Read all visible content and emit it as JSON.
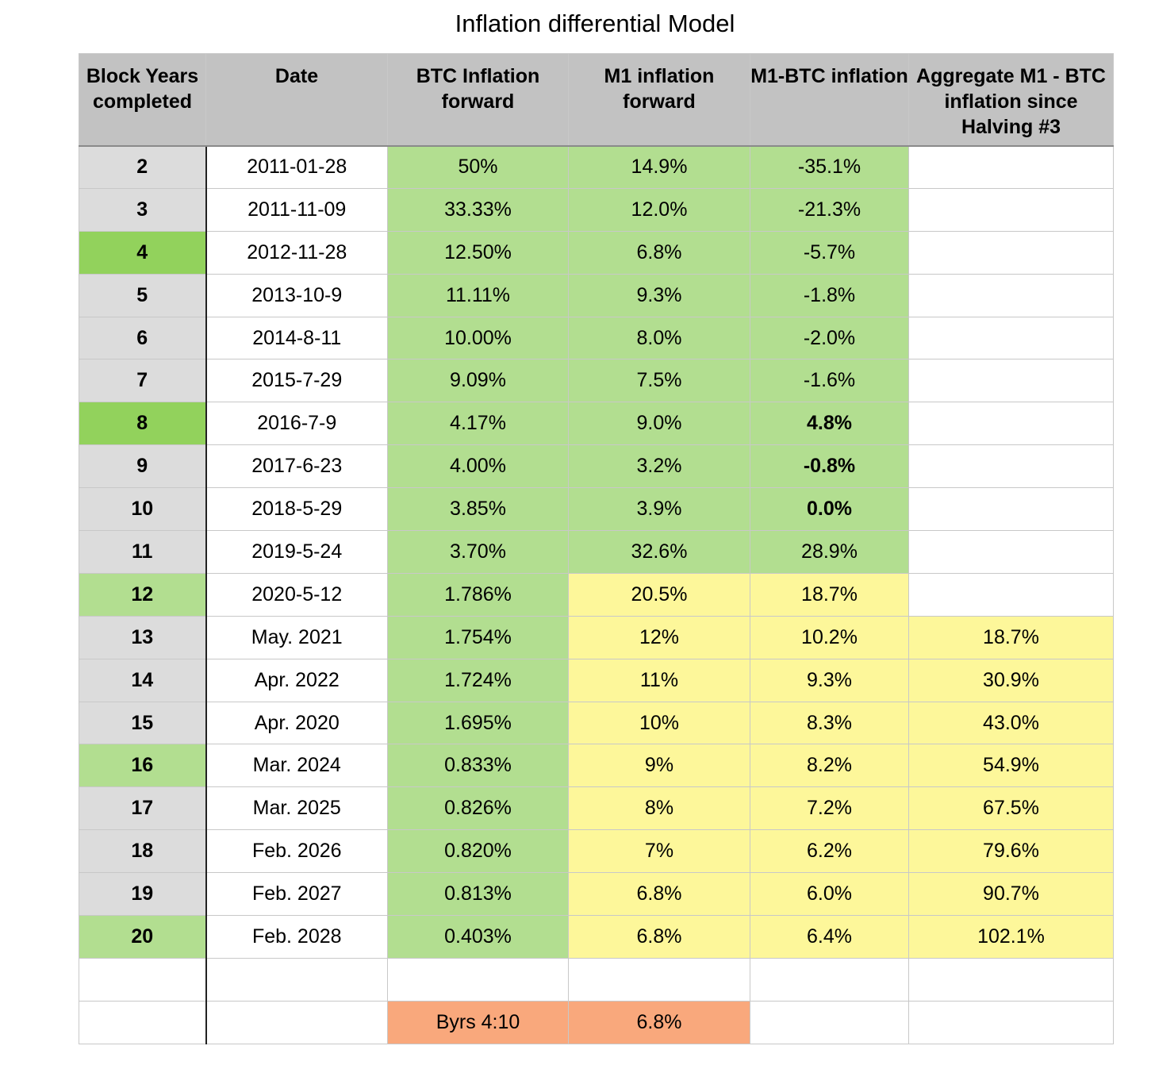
{
  "title": "Inflation differential Model",
  "colors": {
    "header_gray": "#c2c2c2",
    "row_label_gray": "#dcdcdc",
    "halving_green_bright": "#92d25c",
    "green": "#b2de90",
    "yellow": "#fdf79a",
    "salmon": "#f9a87c"
  },
  "headers": {
    "block_years": "Block Years completed",
    "date": "Date",
    "btc_inflation": "BTC Inflation forward",
    "m1_inflation": "M1 inflation forward",
    "m1_btc": "M1-BTC inflation",
    "aggregate": "Aggregate M1 - BTC inflation since Halving #3"
  },
  "rows": [
    {
      "block": "2",
      "date": "2011-01-28",
      "btc": "50%",
      "m1": "14.9%",
      "diff": "-35.1%",
      "agg": ""
    },
    {
      "block": "3",
      "date": "2011-11-09",
      "btc": "33.33%",
      "m1": "12.0%",
      "diff": "-21.3%",
      "agg": ""
    },
    {
      "block": "4",
      "date": "2012-11-28",
      "btc": "12.50%",
      "m1": "6.8%",
      "diff": "-5.7%",
      "agg": ""
    },
    {
      "block": "5",
      "date": "2013-10-9",
      "btc": "11.11%",
      "m1": "9.3%",
      "diff": "-1.8%",
      "agg": ""
    },
    {
      "block": "6",
      "date": "2014-8-11",
      "btc": "10.00%",
      "m1": "8.0%",
      "diff": "-2.0%",
      "agg": ""
    },
    {
      "block": "7",
      "date": "2015-7-29",
      "btc": "9.09%",
      "m1": "7.5%",
      "diff": "-1.6%",
      "agg": ""
    },
    {
      "block": "8",
      "date": "2016-7-9",
      "btc": "4.17%",
      "m1": "9.0%",
      "diff": "4.8%",
      "agg": ""
    },
    {
      "block": "9",
      "date": "2017-6-23",
      "btc": "4.00%",
      "m1": "3.2%",
      "diff": "-0.8%",
      "agg": ""
    },
    {
      "block": "10",
      "date": "2018-5-29",
      "btc": "3.85%",
      "m1": "3.9%",
      "diff": "0.0%",
      "agg": ""
    },
    {
      "block": "11",
      "date": "2019-5-24",
      "btc": "3.70%",
      "m1": "32.6%",
      "diff": "28.9%",
      "agg": ""
    },
    {
      "block": "12",
      "date": "2020-5-12",
      "btc": "1.786%",
      "m1": "20.5%",
      "diff": "18.7%",
      "agg": ""
    },
    {
      "block": "13",
      "date": "May. 2021",
      "btc": "1.754%",
      "m1": "12%",
      "diff": "10.2%",
      "agg": "18.7%"
    },
    {
      "block": "14",
      "date": "Apr. 2022",
      "btc": "1.724%",
      "m1": "11%",
      "diff": "9.3%",
      "agg": "30.9%"
    },
    {
      "block": "15",
      "date": "Apr. 2020",
      "btc": "1.695%",
      "m1": "10%",
      "diff": "8.3%",
      "agg": "43.0%"
    },
    {
      "block": "16",
      "date": "Mar. 2024",
      "btc": "0.833%",
      "m1": "9%",
      "diff": "8.2%",
      "agg": "54.9%"
    },
    {
      "block": "17",
      "date": "Mar. 2025",
      "btc": "0.826%",
      "m1": "8%",
      "diff": "7.2%",
      "agg": "67.5%"
    },
    {
      "block": "18",
      "date": "Feb. 2026",
      "btc": "0.820%",
      "m1": "7%",
      "diff": "6.2%",
      "agg": "79.6%"
    },
    {
      "block": "19",
      "date": "Feb. 2027",
      "btc": "0.813%",
      "m1": "6.8%",
      "diff": "6.0%",
      "agg": "90.7%"
    },
    {
      "block": "20",
      "date": "Feb. 2028",
      "btc": "0.403%",
      "m1": "6.8%",
      "diff": "6.4%",
      "agg": "102.1%"
    },
    {
      "block": "",
      "date": "",
      "btc": "",
      "m1": "",
      "diff": "",
      "agg": ""
    },
    {
      "block": "",
      "date": "",
      "btc": "Byrs 4:10",
      "m1": "6.8%",
      "diff": "",
      "agg": ""
    }
  ]
}
